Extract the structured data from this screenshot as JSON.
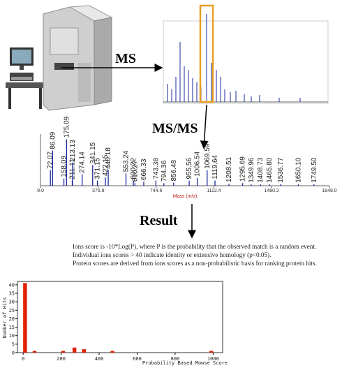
{
  "labels": {
    "ms": "MS",
    "msms": "MS/MS",
    "result": "Result"
  },
  "msms_spectrum": {
    "x_label": "Mass (m/z)",
    "xlim": [
      9,
      1848
    ],
    "ylim": [
      0,
      100
    ],
    "xticks": [
      {
        "value": 9,
        "label": "9.0"
      },
      376.8,
      744.6,
      1112.4,
      1480.2,
      {
        "value": 1848,
        "label": "1848.0"
      }
    ],
    "peaks": [
      {
        "mz": 72.07,
        "label": "72.07",
        "intensity": 30
      },
      {
        "mz": 86.09,
        "label": "86.09",
        "intensity": 68
      },
      {
        "mz": 158.09,
        "label": "158.09",
        "intensity": 14
      },
      {
        "mz": 175.09,
        "label": "175.09",
        "intensity": 90
      },
      {
        "mz": 211.11,
        "label": "211.11",
        "intensity": 10
      },
      {
        "mz": 213.13,
        "label": "213.13",
        "intensity": 45
      },
      {
        "mz": 274.14,
        "label": "274.14",
        "intensity": 22
      },
      {
        "mz": 341.15,
        "label": "341.15",
        "intensity": 40
      },
      {
        "mz": 371.15,
        "label": "371.15",
        "intensity": 10
      },
      {
        "mz": 422.15,
        "label": "422.15",
        "intensity": 16
      },
      {
        "mz": 440.18,
        "label": "440.18",
        "intensity": 30
      },
      {
        "mz": 553.24,
        "label": "553.24",
        "intensity": 24
      },
      {
        "mz": 600.22,
        "label": "600.22",
        "intensity": 10
      },
      {
        "mz": 610.27,
        "label": "610.27",
        "intensity": 5
      },
      {
        "mz": 666.33,
        "label": "666.33",
        "intensity": 8
      },
      {
        "mz": 743.38,
        "label": "743.38",
        "intensity": 10
      },
      {
        "mz": 794.36,
        "label": "794.36",
        "intensity": 5
      },
      {
        "mz": 856.48,
        "label": "856.48",
        "intensity": 6
      },
      {
        "mz": 955.56,
        "label": "955.56",
        "intensity": 10
      },
      {
        "mz": 1006.54,
        "label": "1006.54",
        "intensity": 15
      },
      {
        "mz": 1069.59,
        "label": "1069.59",
        "intensity": 30
      },
      {
        "mz": 1119.64,
        "label": "1119.64",
        "intensity": 10
      },
      {
        "mz": 1208.51,
        "label": "1208.51",
        "intensity": 4
      },
      {
        "mz": 1295.69,
        "label": "1295.69",
        "intensity": 5
      },
      {
        "mz": 1349.96,
        "label": "1349.96",
        "intensity": 3
      },
      {
        "mz": 1408.73,
        "label": "1408.73",
        "intensity": 3
      },
      {
        "mz": 1465.8,
        "label": "1465.80",
        "intensity": 3
      },
      {
        "mz": 1536.77,
        "label": "1536.77",
        "intensity": 3
      },
      {
        "mz": 1650.1,
        "label": "1650.10",
        "intensity": 3
      },
      {
        "mz": 1749.5,
        "label": "1749.50",
        "intensity": 3
      }
    ]
  },
  "notes": [
    "Ions score is -10*Log(P), where P is the probability that the observed match is a random event.",
    "Individual ions scores > 40 indicate identity or extensive homology (p<0.05).",
    "Protein scores are derived from ions scores as a non-probabilistic basis for ranking protein hits."
  ],
  "histogram": {
    "x_label": "Probability Based Mowse Score",
    "y_label": "Number of Hits",
    "color": "#e02000",
    "xlim": [
      -30,
      1050
    ],
    "ylim": [
      0,
      42
    ],
    "xticks": [
      0,
      200,
      400,
      600,
      800,
      1000
    ],
    "yticks": [
      0,
      5,
      10,
      15,
      20,
      25,
      30,
      35,
      40
    ],
    "x": [
      10,
      60,
      210,
      270,
      320,
      470,
      990
    ],
    "values": [
      41,
      1,
      1,
      3,
      2,
      1,
      1
    ]
  }
}
